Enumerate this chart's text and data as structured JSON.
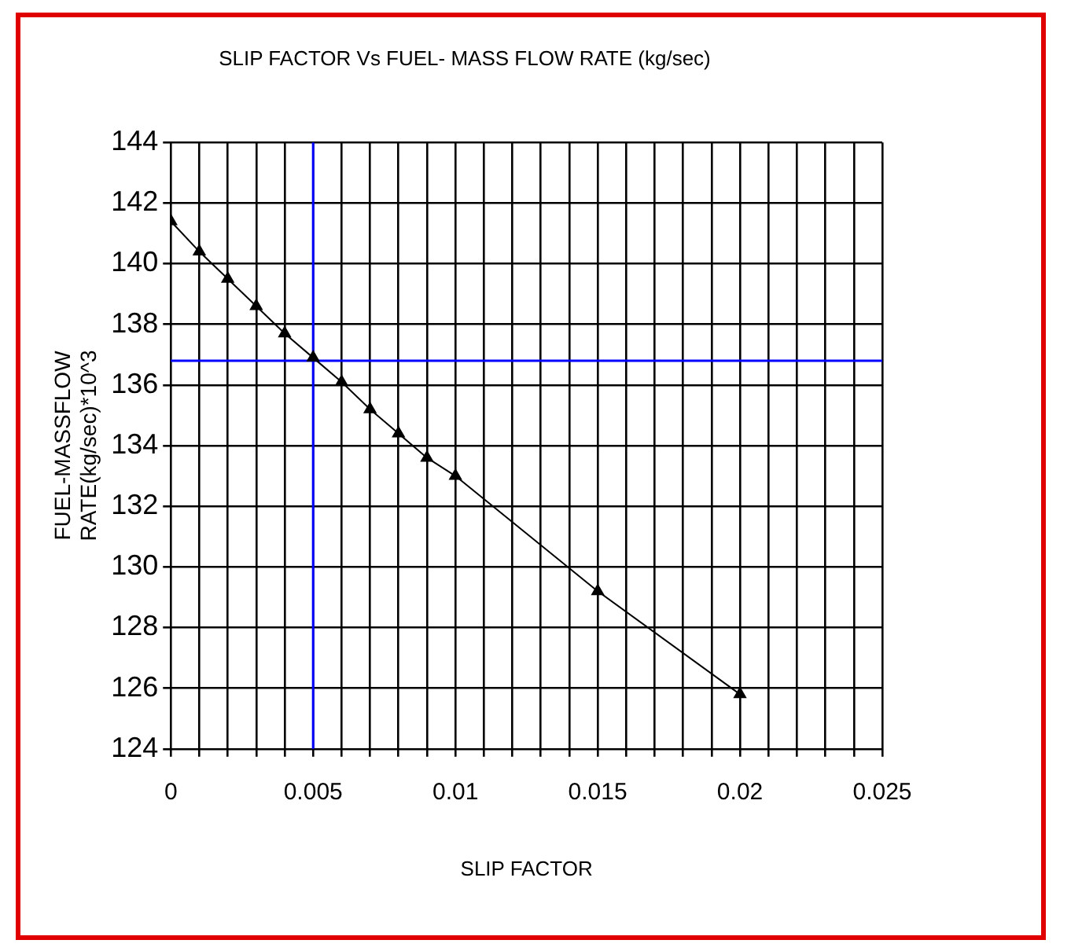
{
  "chart_data": {
    "type": "line",
    "title": "SLIP FACTOR Vs FUEL- MASS FLOW RATE (kg/sec)",
    "xlabel": "SLIP FACTOR",
    "ylabel": "FUEL-MASSFLOW\nRATE(kg/sec)*10^3",
    "x": [
      0,
      0.001,
      0.002,
      0.003,
      0.004,
      0.005,
      0.006,
      0.007,
      0.008,
      0.009,
      0.01,
      0.015,
      0.02
    ],
    "series": [
      {
        "color": "#000000",
        "values": [
          141.4,
          140.4,
          139.5,
          138.6,
          137.7,
          136.9,
          136.1,
          135.2,
          134.4,
          133.6,
          133.0,
          129.2,
          125.8
        ]
      }
    ],
    "xlim": [
      0,
      0.025
    ],
    "xticks": [
      0,
      {
        "value": 0.001,
        "label": null
      },
      {
        "value": 0.002,
        "label": null
      },
      {
        "value": 0.003,
        "label": null
      },
      {
        "value": 0.004,
        "label": null
      },
      0.005,
      {
        "value": 0.006,
        "label": null
      },
      {
        "value": 0.007,
        "label": null
      },
      {
        "value": 0.008,
        "label": null
      },
      {
        "value": 0.009,
        "label": null
      },
      0.01,
      {
        "value": 0.011,
        "label": null
      },
      {
        "value": 0.012,
        "label": null
      },
      {
        "value": 0.013,
        "label": null
      },
      {
        "value": 0.014,
        "label": null
      },
      0.015,
      {
        "value": 0.016,
        "label": null
      },
      {
        "value": 0.017,
        "label": null
      },
      {
        "value": 0.018,
        "label": null
      },
      {
        "value": 0.019,
        "label": null
      },
      0.02,
      {
        "value": 0.021,
        "label": null
      },
      {
        "value": 0.022,
        "label": null
      },
      {
        "value": 0.023,
        "label": null
      },
      {
        "value": 0.024,
        "label": null
      },
      0.025
    ],
    "ylim": [
      124,
      144
    ],
    "yticks": [
      124,
      126,
      128,
      130,
      132,
      134,
      136,
      138,
      140,
      142,
      144
    ],
    "grid": true,
    "legend": false,
    "marker": "triangle",
    "line_style": "solid",
    "ref_lines": [
      {
        "axis": "x",
        "value": 0.005,
        "color": "#0000ff"
      },
      {
        "axis": "y",
        "value": 136.8,
        "color": "#0000ff"
      }
    ]
  }
}
